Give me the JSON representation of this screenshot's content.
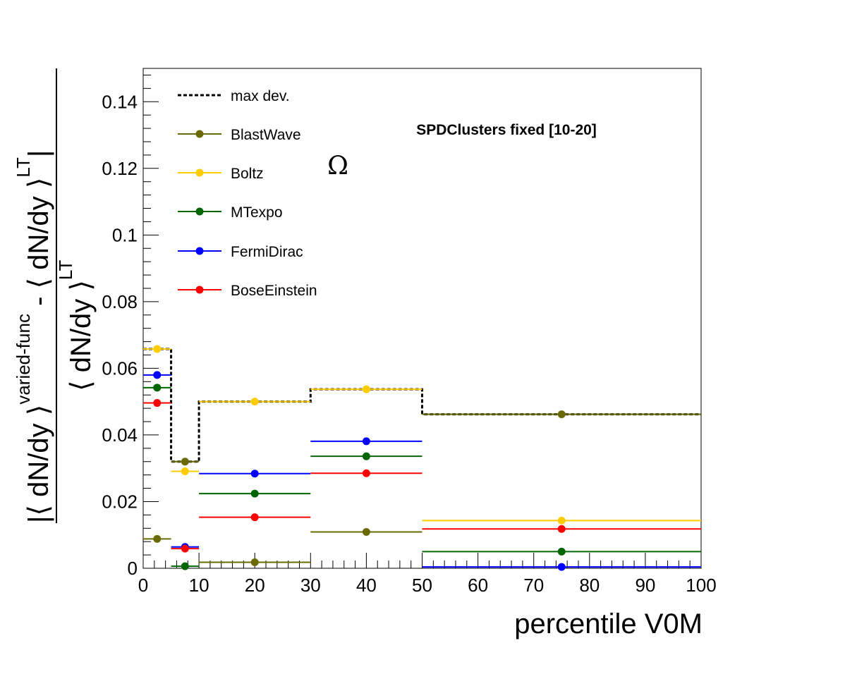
{
  "chart_data": {
    "type": "scatter",
    "title": "",
    "xlabel": "percentile V0M",
    "ylabel": {
      "num_open": "|",
      "num_a": "⟨ dN/dy ⟩",
      "num_a_sup": "varied-func",
      "num_minus": " - ",
      "num_b": "⟨ dN/dy ⟩",
      "num_b_sup": "LT",
      "num_close": "|",
      "den": "⟨ dN/dy ⟩",
      "den_sup": "LT"
    },
    "xlim": [
      0,
      100
    ],
    "ylim": [
      0,
      0.15
    ],
    "x_ticks": [
      "0",
      "10",
      "20",
      "30",
      "40",
      "50",
      "60",
      "70",
      "80",
      "90",
      "100"
    ],
    "y_ticks": [
      "0",
      "0.02",
      "0.04",
      "0.06",
      "0.08",
      "0.1",
      "0.12",
      "0.14"
    ],
    "annotations": [
      "SPDClusters fixed [10-20]",
      "Ω"
    ],
    "legend_position": "top-left",
    "bins": [
      [
        0,
        5
      ],
      [
        5,
        10
      ],
      [
        10,
        30
      ],
      [
        30,
        50
      ],
      [
        50,
        100
      ]
    ],
    "x": [
      2.5,
      7.5,
      20,
      40,
      75
    ],
    "max_dev": {
      "name": "max dev.",
      "color": "#000000",
      "values": [
        0.0658,
        0.032,
        0.05,
        0.0537,
        0.0462
      ]
    },
    "series": [
      {
        "name": "BlastWave",
        "color": "#6b6a00",
        "values": [
          0.0088,
          0.032,
          0.0018,
          0.0109,
          0.0462
        ]
      },
      {
        "name": "Boltz",
        "color": "#ffcc00",
        "values": [
          0.0658,
          0.0291,
          0.05,
          0.0537,
          0.0143
        ]
      },
      {
        "name": "MTexpo",
        "color": "#006600",
        "values": [
          0.0542,
          0.0006,
          0.0224,
          0.0336,
          0.005
        ]
      },
      {
        "name": "FermiDirac",
        "color": "#0000ff",
        "values": [
          0.058,
          0.0064,
          0.0284,
          0.0381,
          0.0004
        ]
      },
      {
        "name": "BoseEinstein",
        "color": "#ff0000",
        "values": [
          0.0496,
          0.0059,
          0.0153,
          0.0285,
          0.0118
        ]
      }
    ]
  }
}
